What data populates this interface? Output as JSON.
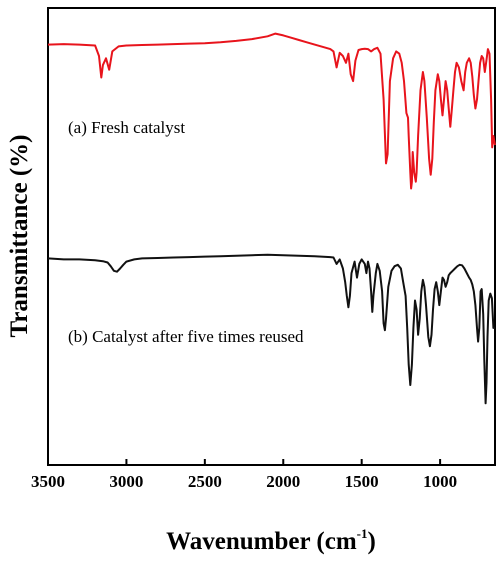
{
  "chart_data": {
    "type": "line",
    "xlabel": "Wavenumber (cm",
    "xlabel_sup": "-1",
    "xlabel_close": ")",
    "ylabel": "Transmittance (%)",
    "xlim": [
      3500,
      650
    ],
    "x_reversed": true,
    "x_ticks": [
      3500,
      3000,
      2500,
      2000,
      1500,
      1000
    ],
    "y_ticks_shown": false,
    "ylim": [
      0,
      100
    ],
    "grid": false,
    "legend": "none",
    "annotations": [
      {
        "text": "(a) Fresh catalyst",
        "series": 0
      },
      {
        "text": "(b) Catalyst after five times reused",
        "series": 1
      }
    ],
    "series": [
      {
        "color": "#e8141c",
        "points": [
          [
            3500,
            92.0
          ],
          [
            3400,
            92.1
          ],
          [
            3300,
            92.0
          ],
          [
            3200,
            91.8
          ],
          [
            3175,
            89.5
          ],
          [
            3160,
            84.8
          ],
          [
            3150,
            87.5
          ],
          [
            3130,
            89.0
          ],
          [
            3110,
            86.5
          ],
          [
            3090,
            90.5
          ],
          [
            3050,
            91.6
          ],
          [
            3000,
            91.8
          ],
          [
            2900,
            91.9
          ],
          [
            2800,
            92.0
          ],
          [
            2700,
            92.1
          ],
          [
            2600,
            92.2
          ],
          [
            2500,
            92.3
          ],
          [
            2400,
            92.5
          ],
          [
            2300,
            92.8
          ],
          [
            2200,
            93.2
          ],
          [
            2100,
            93.8
          ],
          [
            2050,
            94.4
          ],
          [
            2000,
            94.0
          ],
          [
            1950,
            93.5
          ],
          [
            1900,
            93.0
          ],
          [
            1850,
            92.5
          ],
          [
            1800,
            92.0
          ],
          [
            1750,
            91.5
          ],
          [
            1700,
            91.0
          ],
          [
            1680,
            90.5
          ],
          [
            1660,
            87.0
          ],
          [
            1640,
            90.2
          ],
          [
            1620,
            89.5
          ],
          [
            1600,
            88.0
          ],
          [
            1585,
            90.0
          ],
          [
            1570,
            85.5
          ],
          [
            1555,
            84.0
          ],
          [
            1540,
            88.5
          ],
          [
            1520,
            90.8
          ],
          [
            1500,
            91.0
          ],
          [
            1480,
            91.1
          ],
          [
            1460,
            91.0
          ],
          [
            1440,
            90.5
          ],
          [
            1420,
            91.0
          ],
          [
            1400,
            91.3
          ],
          [
            1380,
            90.0
          ],
          [
            1360,
            80.0
          ],
          [
            1345,
            66.0
          ],
          [
            1335,
            68.0
          ],
          [
            1320,
            84.0
          ],
          [
            1300,
            89.0
          ],
          [
            1280,
            90.5
          ],
          [
            1260,
            90.0
          ],
          [
            1245,
            88.0
          ],
          [
            1230,
            84.0
          ],
          [
            1215,
            77.0
          ],
          [
            1205,
            76.0
          ],
          [
            1200,
            72.0
          ],
          [
            1190,
            64.0
          ],
          [
            1185,
            60.5
          ],
          [
            1180,
            62.0
          ],
          [
            1175,
            68.5
          ],
          [
            1165,
            64.0
          ],
          [
            1155,
            62.0
          ],
          [
            1150,
            64.0
          ],
          [
            1140,
            72.0
          ],
          [
            1125,
            82.0
          ],
          [
            1110,
            86.0
          ],
          [
            1100,
            84.0
          ],
          [
            1085,
            76.0
          ],
          [
            1070,
            67.0
          ],
          [
            1060,
            63.5
          ],
          [
            1050,
            67.0
          ],
          [
            1040,
            75.0
          ],
          [
            1030,
            82.0
          ],
          [
            1015,
            85.5
          ],
          [
            1005,
            84.0
          ],
          [
            995,
            80.0
          ],
          [
            985,
            76.5
          ],
          [
            975,
            80.0
          ],
          [
            965,
            84.0
          ],
          [
            955,
            82.0
          ],
          [
            945,
            78.0
          ],
          [
            935,
            74.0
          ],
          [
            925,
            78.0
          ],
          [
            915,
            82.0
          ],
          [
            905,
            86.0
          ],
          [
            895,
            88.0
          ],
          [
            880,
            87.0
          ],
          [
            865,
            84.0
          ],
          [
            850,
            82.0
          ],
          [
            840,
            86.0
          ],
          [
            830,
            88.0
          ],
          [
            815,
            89.0
          ],
          [
            805,
            88.0
          ],
          [
            795,
            85.0
          ],
          [
            785,
            81.0
          ],
          [
            775,
            78.0
          ],
          [
            765,
            80.0
          ],
          [
            755,
            84.0
          ],
          [
            745,
            88.0
          ],
          [
            735,
            89.5
          ],
          [
            725,
            89.0
          ],
          [
            715,
            86.0
          ],
          [
            705,
            88.5
          ],
          [
            695,
            91.0
          ],
          [
            685,
            90.0
          ],
          [
            675,
            80.0
          ],
          [
            668,
            69.5
          ],
          [
            660,
            72.0
          ],
          [
            650,
            70.0
          ]
        ]
      },
      {
        "color": "#111111",
        "points": [
          [
            3500,
            45.2
          ],
          [
            3400,
            45.0
          ],
          [
            3300,
            45.0
          ],
          [
            3200,
            44.8
          ],
          [
            3150,
            44.6
          ],
          [
            3120,
            44.3
          ],
          [
            3100,
            43.5
          ],
          [
            3080,
            42.5
          ],
          [
            3060,
            42.3
          ],
          [
            3040,
            43.0
          ],
          [
            3020,
            43.8
          ],
          [
            3000,
            44.5
          ],
          [
            2950,
            45.0
          ],
          [
            2900,
            45.2
          ],
          [
            2800,
            45.3
          ],
          [
            2700,
            45.4
          ],
          [
            2600,
            45.5
          ],
          [
            2500,
            45.6
          ],
          [
            2400,
            45.7
          ],
          [
            2300,
            45.8
          ],
          [
            2200,
            45.9
          ],
          [
            2100,
            46.0
          ],
          [
            2000,
            45.9
          ],
          [
            1900,
            45.8
          ],
          [
            1800,
            45.7
          ],
          [
            1700,
            45.5
          ],
          [
            1680,
            45.4
          ],
          [
            1660,
            44.0
          ],
          [
            1640,
            45.0
          ],
          [
            1620,
            43.0
          ],
          [
            1605,
            40.0
          ],
          [
            1595,
            37.0
          ],
          [
            1585,
            34.5
          ],
          [
            1575,
            37.0
          ],
          [
            1565,
            42.0
          ],
          [
            1545,
            44.5
          ],
          [
            1530,
            41.0
          ],
          [
            1515,
            44.0
          ],
          [
            1500,
            45.0
          ],
          [
            1480,
            44.0
          ],
          [
            1470,
            42.0
          ],
          [
            1460,
            44.5
          ],
          [
            1450,
            43.0
          ],
          [
            1440,
            38.0
          ],
          [
            1432,
            33.5
          ],
          [
            1425,
            37.0
          ],
          [
            1410,
            42.0
          ],
          [
            1400,
            44.0
          ],
          [
            1385,
            42.5
          ],
          [
            1370,
            38.0
          ],
          [
            1360,
            31.0
          ],
          [
            1352,
            29.5
          ],
          [
            1345,
            32.0
          ],
          [
            1330,
            39.0
          ],
          [
            1310,
            42.5
          ],
          [
            1290,
            43.5
          ],
          [
            1270,
            43.8
          ],
          [
            1250,
            43.0
          ],
          [
            1235,
            40.0
          ],
          [
            1220,
            37.0
          ],
          [
            1210,
            30.0
          ],
          [
            1200,
            22.0
          ],
          [
            1190,
            17.5
          ],
          [
            1180,
            22.0
          ],
          [
            1170,
            30.0
          ],
          [
            1160,
            36.0
          ],
          [
            1150,
            34.0
          ],
          [
            1140,
            28.5
          ],
          [
            1130,
            32.0
          ],
          [
            1120,
            38.0
          ],
          [
            1110,
            40.5
          ],
          [
            1100,
            39.0
          ],
          [
            1090,
            35.0
          ],
          [
            1075,
            28.0
          ],
          [
            1065,
            26.0
          ],
          [
            1055,
            28.5
          ],
          [
            1045,
            34.0
          ],
          [
            1035,
            38.5
          ],
          [
            1025,
            40.0
          ],
          [
            1015,
            38.0
          ],
          [
            1005,
            35.0
          ],
          [
            995,
            38.0
          ],
          [
            985,
            41.0
          ],
          [
            975,
            40.5
          ],
          [
            965,
            39.0
          ],
          [
            955,
            40.0
          ],
          [
            945,
            41.5
          ],
          [
            935,
            42.0
          ],
          [
            920,
            42.5
          ],
          [
            905,
            43.0
          ],
          [
            890,
            43.5
          ],
          [
            875,
            43.8
          ],
          [
            860,
            43.7
          ],
          [
            845,
            43.0
          ],
          [
            830,
            42.0
          ],
          [
            815,
            41.0
          ],
          [
            805,
            40.5
          ],
          [
            795,
            39.5
          ],
          [
            785,
            38.0
          ],
          [
            775,
            35.0
          ],
          [
            765,
            30.0
          ],
          [
            758,
            27.0
          ],
          [
            750,
            30.0
          ],
          [
            742,
            38.0
          ],
          [
            735,
            38.5
          ],
          [
            725,
            33.0
          ],
          [
            718,
            23.0
          ],
          [
            710,
            13.5
          ],
          [
            704,
            18.0
          ],
          [
            698,
            28.0
          ],
          [
            690,
            36.0
          ],
          [
            680,
            37.5
          ],
          [
            670,
            36.5
          ],
          [
            660,
            30.0
          ],
          [
            650,
            30.0
          ]
        ]
      }
    ]
  }
}
